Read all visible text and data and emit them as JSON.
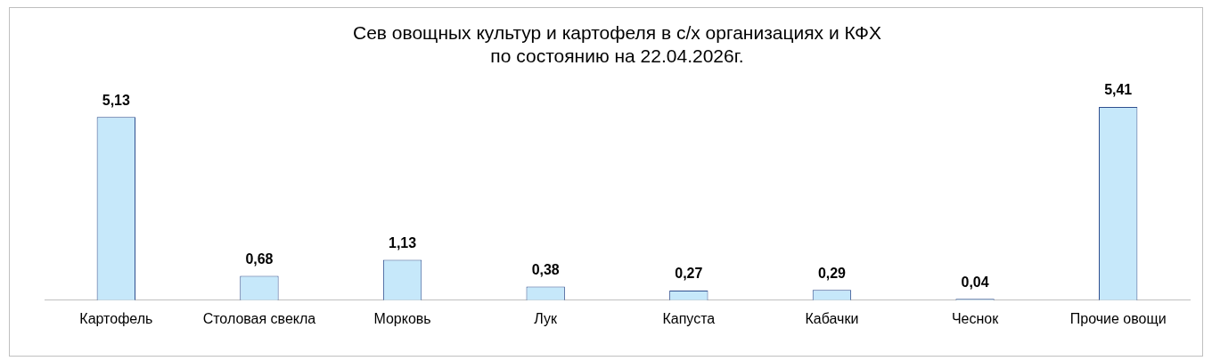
{
  "chart_data": {
    "type": "bar",
    "title": "Сев овощных культур и картофеля в с/х организациях и КФХ\nпо состоянию на 22.04.2026г.",
    "categories": [
      "Картофель",
      "Столовая свекла",
      "Морковь",
      "Лук",
      "Капуста",
      "Кабачки",
      "Чеснок",
      "Прочие овощи"
    ],
    "values": [
      5.13,
      0.68,
      1.13,
      0.38,
      0.27,
      0.29,
      0.04,
      5.41
    ],
    "value_labels": [
      "5,13",
      "0,68",
      "1,13",
      "0,38",
      "0,27",
      "0,29",
      "0,04",
      "5,41"
    ],
    "color": "#c6e8fa",
    "grid": false,
    "legend": false,
    "tick_labels": "x"
  }
}
